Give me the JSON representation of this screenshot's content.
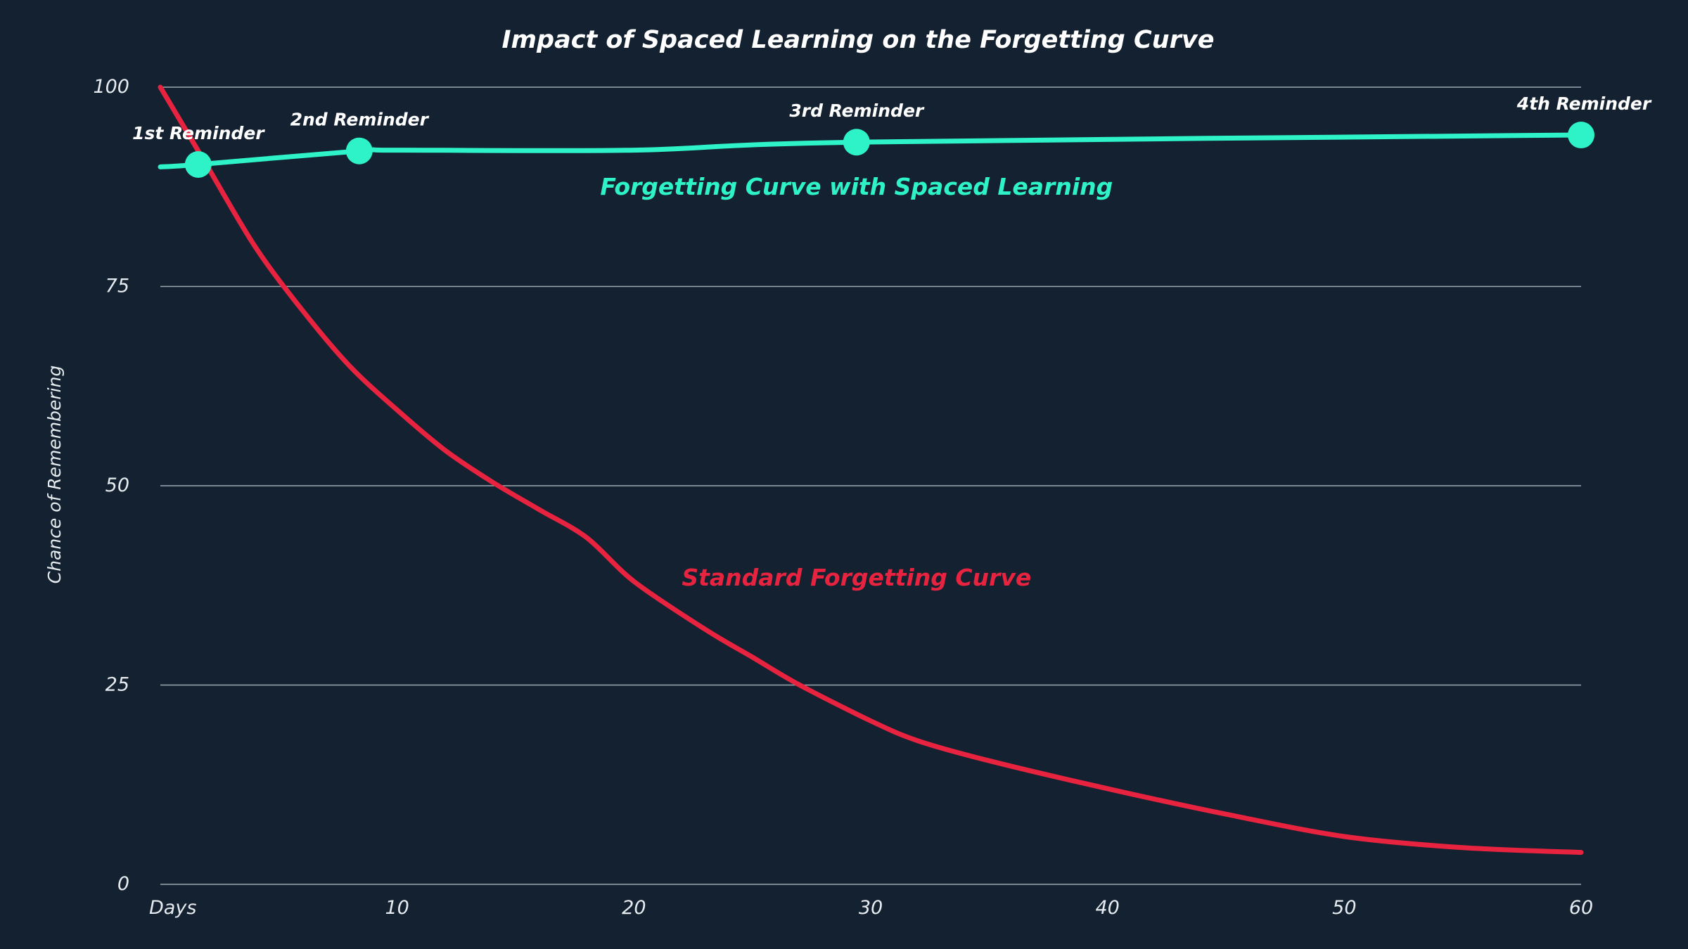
{
  "chart_data": {
    "type": "line",
    "title": "Impact of Spaced Learning on the Forgetting Curve",
    "xlabel": "",
    "ylabel": "Chance of Remembering",
    "xlim": [
      0,
      60
    ],
    "ylim": [
      0,
      100
    ],
    "x_ticks": [
      {
        "value": 0,
        "label": "Days"
      },
      {
        "value": 10,
        "label": "10"
      },
      {
        "value": 20,
        "label": "20"
      },
      {
        "value": 30,
        "label": "30"
      },
      {
        "value": 40,
        "label": "40"
      },
      {
        "value": 50,
        "label": "50"
      },
      {
        "value": 60,
        "label": "60"
      }
    ],
    "y_ticks": [
      {
        "value": 0,
        "label": "0"
      },
      {
        "value": 25,
        "label": "25"
      },
      {
        "value": 50,
        "label": "50"
      },
      {
        "value": 75,
        "label": "75"
      },
      {
        "value": 100,
        "label": "100"
      }
    ],
    "grid": "horizontal",
    "legend": "none",
    "series": [
      {
        "name": "Forgetting Curve with Spaced Learning",
        "color": "#2ef2c8",
        "values": [
          {
            "x": 0,
            "y": 90
          },
          {
            "x": 1.6,
            "y": 90.3
          },
          {
            "x": 8.4,
            "y": 92
          },
          {
            "x": 10,
            "y": 92.1
          },
          {
            "x": 20,
            "y": 92.1
          },
          {
            "x": 29.4,
            "y": 93.1
          },
          {
            "x": 60,
            "y": 94
          }
        ]
      },
      {
        "name": "Standard Forgetting Curve",
        "color": "#e8233f",
        "values": [
          {
            "x": 0,
            "y": 100
          },
          {
            "x": 2,
            "y": 90
          },
          {
            "x": 4,
            "y": 80
          },
          {
            "x": 6,
            "y": 72
          },
          {
            "x": 8,
            "y": 65
          },
          {
            "x": 10,
            "y": 59.5
          },
          {
            "x": 12,
            "y": 54.5
          },
          {
            "x": 14,
            "y": 50.5
          },
          {
            "x": 16,
            "y": 47
          },
          {
            "x": 18,
            "y": 43.5
          },
          {
            "x": 20,
            "y": 38
          },
          {
            "x": 23,
            "y": 32
          },
          {
            "x": 25,
            "y": 28.5
          },
          {
            "x": 27,
            "y": 25
          },
          {
            "x": 30,
            "y": 20.5
          },
          {
            "x": 32,
            "y": 18
          },
          {
            "x": 35,
            "y": 15.5
          },
          {
            "x": 40,
            "y": 12
          },
          {
            "x": 45,
            "y": 8.8
          },
          {
            "x": 50,
            "y": 6
          },
          {
            "x": 55,
            "y": 4.6
          },
          {
            "x": 60,
            "y": 4
          }
        ]
      }
    ],
    "markers": [
      {
        "x": 1.6,
        "y": 90.3,
        "label": "1st Reminder"
      },
      {
        "x": 8.4,
        "y": 92,
        "label": "2nd Reminder"
      },
      {
        "x": 29.4,
        "y": 93.1,
        "label": "3rd Reminder"
      },
      {
        "x": 60,
        "y": 94,
        "label": "4th Reminder"
      }
    ],
    "annotations": [
      {
        "text": "Forgetting Curve with Spaced Learning",
        "x": 29.4,
        "y": 86.5,
        "color": "#2ef2c8"
      },
      {
        "text": "Standard Forgetting Curve",
        "x": 29.4,
        "y": 37.5,
        "color": "#e8233f"
      }
    ]
  }
}
